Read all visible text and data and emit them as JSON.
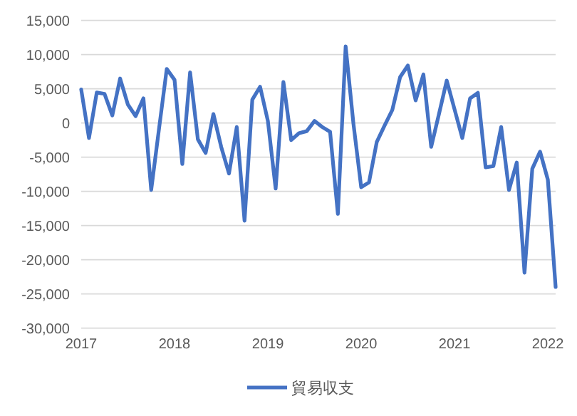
{
  "chart_data": {
    "type": "line",
    "x": [
      "2017-01",
      "2017-02",
      "2017-03",
      "2017-04",
      "2017-05",
      "2017-06",
      "2017-07",
      "2017-08",
      "2017-09",
      "2017-10",
      "2017-11",
      "2017-12",
      "2018-01",
      "2018-02",
      "2018-03",
      "2018-04",
      "2018-05",
      "2018-06",
      "2018-07",
      "2018-08",
      "2018-09",
      "2018-10",
      "2018-11",
      "2018-12",
      "2019-01",
      "2019-02",
      "2019-03",
      "2019-04",
      "2019-05",
      "2019-06",
      "2019-07",
      "2019-08",
      "2019-09",
      "2019-10",
      "2019-11",
      "2019-12",
      "2020-01",
      "2020-02",
      "2020-03",
      "2020-04",
      "2020-05",
      "2020-06",
      "2020-07",
      "2020-08",
      "2020-09",
      "2020-10",
      "2020-11",
      "2020-12",
      "2021-01",
      "2021-02",
      "2021-03",
      "2021-04",
      "2021-05",
      "2021-06",
      "2021-07",
      "2021-08",
      "2021-09",
      "2021-10",
      "2021-11",
      "2021-12",
      "2022-01",
      "2022-02"
    ],
    "series": [
      {
        "name": "貿易収支",
        "color": "#4472c4",
        "values": [
          4900,
          -2200,
          4450,
          4250,
          1100,
          6500,
          2700,
          1000,
          3600,
          -9800,
          -900,
          7900,
          6300,
          -6000,
          7400,
          -2400,
          -4400,
          1300,
          -3500,
          -7400,
          -600,
          -14300,
          3400,
          5300,
          300,
          -9600,
          6000,
          -2500,
          -1500,
          -1200,
          300,
          -600,
          -1300,
          -13300,
          11200,
          -100,
          -9400,
          -8700,
          -2800,
          -400,
          1900,
          6700,
          8400,
          3300,
          7100,
          -3500,
          1300,
          6200,
          2000,
          -2200,
          3600,
          4400,
          -6500,
          -6300,
          -600,
          -9800,
          -5800,
          -21900,
          -6700,
          -4200,
          -8300,
          -24000
        ]
      }
    ],
    "xlim": [
      "2017-01",
      "2022-02"
    ],
    "xticks": [
      {
        "value": "2017-01",
        "label": "2017"
      },
      {
        "value": "2018-01",
        "label": "2018"
      },
      {
        "value": "2019-01",
        "label": "2019"
      },
      {
        "value": "2020-01",
        "label": "2020"
      },
      {
        "value": "2021-01",
        "label": "2021"
      },
      {
        "value": "2022-01",
        "label": "2022"
      }
    ],
    "ylim": [
      -30000,
      15000
    ],
    "yticks": [
      {
        "value": 15000,
        "label": "15,000"
      },
      {
        "value": 10000,
        "label": "10,000"
      },
      {
        "value": 5000,
        "label": "5,000"
      },
      {
        "value": 0,
        "label": "0"
      },
      {
        "value": -5000,
        "label": "-5,000"
      },
      {
        "value": -10000,
        "label": "-10,000"
      },
      {
        "value": -15000,
        "label": "-15,000"
      },
      {
        "value": -20000,
        "label": "-20,000"
      },
      {
        "value": -25000,
        "label": "-25,000"
      },
      {
        "value": -30000,
        "label": "-30,000"
      }
    ],
    "grid": "y",
    "legend": "bottom",
    "marker": "none",
    "line_style": "solid"
  }
}
